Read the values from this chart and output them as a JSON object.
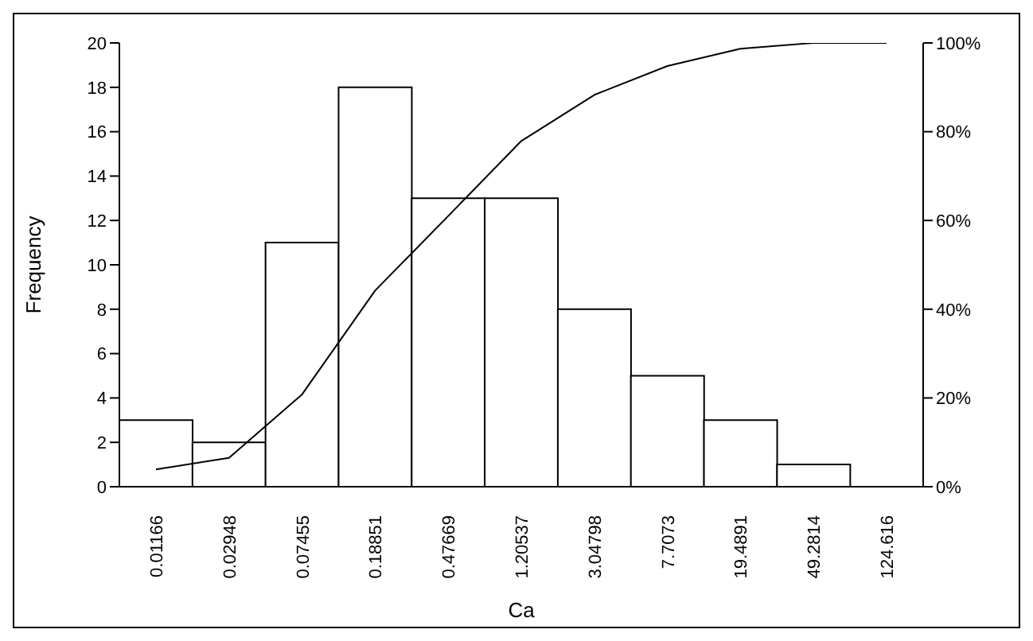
{
  "chart_data": {
    "type": "bar",
    "xlabel": "Ca",
    "ylabel": "Frequency",
    "marker": "none",
    "categories": [
      "0.01166",
      "0.02948",
      "0.07455",
      "0.18851",
      "0.47669",
      "1.20537",
      "3.04798",
      "7.7073",
      "19.4891",
      "49.2814",
      "124.616"
    ],
    "series": [
      {
        "color": "#ffffff",
        "values": [
          3,
          2,
          11,
          18,
          13,
          13,
          8,
          5,
          3,
          1,
          0
        ]
      },
      {
        "type": "line",
        "axis": "y2",
        "color": "#000000",
        "values": [
          3.9,
          6.5,
          20.8,
          44.2,
          61.0,
          77.9,
          88.3,
          94.8,
          98.7,
          100,
          100
        ]
      }
    ],
    "ylim": [
      0,
      20
    ],
    "yticks": [
      0,
      2,
      4,
      6,
      8,
      10,
      12,
      14,
      16,
      18,
      20
    ],
    "y2lim": [
      0,
      100
    ],
    "y2ticks": [
      {
        "value": 0,
        "label": "0%"
      },
      {
        "value": 20,
        "label": "20%"
      },
      {
        "value": 40,
        "label": "40%"
      },
      {
        "value": 60,
        "label": "60%"
      },
      {
        "value": 80,
        "label": "80%"
      },
      {
        "value": 100,
        "label": "100%"
      }
    ]
  }
}
